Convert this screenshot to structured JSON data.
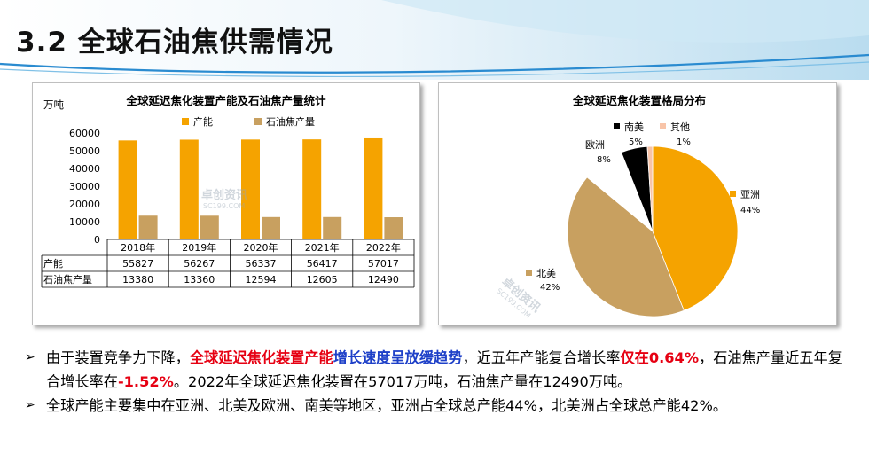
{
  "page": {
    "title": "3.2 全球石油焦供需情况",
    "colors": {
      "accent_red": "#e60012",
      "accent_blue": "#1e40c8"
    }
  },
  "watermark": {
    "brand": "卓创资讯",
    "url": "SC199.COM"
  },
  "chart_data": [
    {
      "type": "bar",
      "title": "全球延迟焦化装置产能及石油焦产量统计",
      "ylabel": "万吨",
      "ylim": [
        0,
        60000
      ],
      "yticks": [
        "0",
        "10000",
        "20000",
        "30000",
        "40000",
        "50000",
        "60000"
      ],
      "categories": [
        "2018年",
        "2019年",
        "2020年",
        "2021年",
        "2022年"
      ],
      "series": [
        {
          "name": "产能",
          "color": "#f5a300",
          "values": [
            55827,
            56267,
            56337,
            56417,
            57017
          ],
          "labels": [
            "55827",
            "56267",
            "56337",
            "56417",
            "57017"
          ]
        },
        {
          "name": "石油焦产量",
          "color": "#c8a060",
          "values": [
            13380,
            13360,
            12594,
            12605,
            12490
          ],
          "labels": [
            "13380",
            "13360",
            "12594",
            "12605",
            "12490"
          ]
        }
      ],
      "legend_position": "top",
      "data_table": true
    },
    {
      "type": "pie",
      "title": "全球延迟焦化装置格局分布",
      "slices": [
        {
          "name": "亚洲",
          "value": 44,
          "label": "44%",
          "color": "#f5a300"
        },
        {
          "name": "北美",
          "value": 42,
          "label": "42%",
          "color": "#c8a060"
        },
        {
          "name": "欧洲",
          "value": 8,
          "label": "8%",
          "color": "#ffffff"
        },
        {
          "name": "南美",
          "value": 5,
          "label": "5%",
          "color": "#000000"
        },
        {
          "name": "其他",
          "value": 1,
          "label": "1%",
          "color": "#f8c4a8"
        }
      ],
      "start_angle": "top, clockwise",
      "legend_position": "labels beside slices"
    }
  ],
  "bullets": [
    {
      "parts": [
        {
          "text": "由于装置竞争力下降，",
          "style": ""
        },
        {
          "text": "全球延迟焦化装置产能",
          "style": "red"
        },
        {
          "text": "增长速度呈放缓趋势",
          "style": "blue"
        },
        {
          "text": "，近五年产能复合增长率",
          "style": ""
        },
        {
          "text": "仅在0.64%",
          "style": "red"
        },
        {
          "text": "，石油焦产量近五年复合增长率在",
          "style": ""
        },
        {
          "text": "-1.52%",
          "style": "red"
        },
        {
          "text": "。2022年全球延迟焦化装置在57017万吨，石油焦产量在12490万吨。",
          "style": ""
        }
      ]
    },
    {
      "parts": [
        {
          "text": "全球产能主要集中在亚洲、北美及欧洲、南美等地区，亚洲占全球总产能44%，北美洲占全球总产能42%。",
          "style": ""
        }
      ]
    }
  ],
  "bullet_marker": "➢"
}
